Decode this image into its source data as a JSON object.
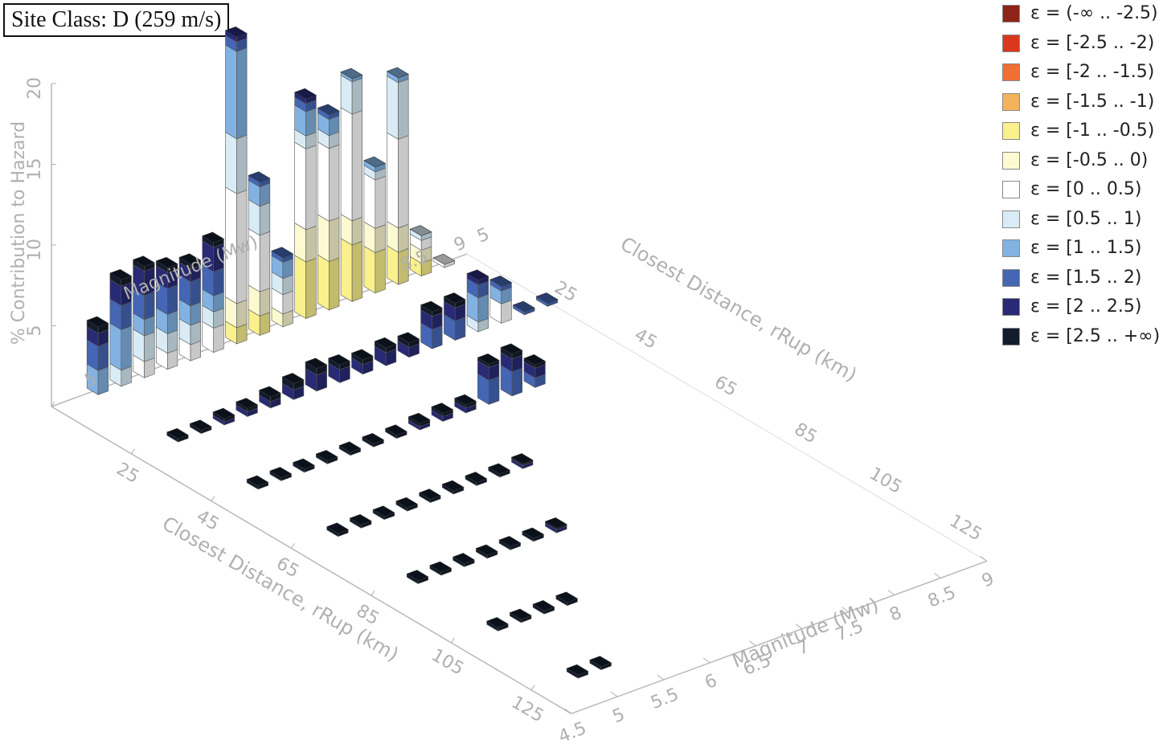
{
  "site_class": "Site Class: D (259 m/s)",
  "chart_data": {
    "type": "bar3d",
    "title": "",
    "zlabel": "% Contribution to Hazard",
    "xlabel": "Closest Distance, rRup (km)",
    "ylabel": "Magnitude (Mw)",
    "xlabel_back": "Closest Distance, rRup (km)",
    "ylabel_back": "Magnitude (Mw)",
    "z_ticks": [
      "5",
      "10",
      "15",
      "20"
    ],
    "x_ticks": [
      "5",
      "25",
      "45",
      "65",
      "85",
      "105",
      "125"
    ],
    "y_ticks": [
      "4.5",
      "5",
      "5.5",
      "6",
      "6.5",
      "7",
      "7.5",
      "8",
      "8.5",
      "9"
    ],
    "z_range": [
      0,
      20
    ],
    "x_range": [
      5,
      135
    ],
    "y_range": [
      4.5,
      9
    ],
    "epsilon_bins": [
      {
        "label": "ε = (-∞ .. -2.5)",
        "color": "#8e2418"
      },
      {
        "label": "ε = [-2.5 .. -2)",
        "color": "#d9381e"
      },
      {
        "label": "ε = [-2 .. -1.5)",
        "color": "#ee7033"
      },
      {
        "label": "ε = [-1.5 .. -1)",
        "color": "#f2b35a"
      },
      {
        "label": "ε = [-1 .. -0.5)",
        "color": "#faf08c"
      },
      {
        "label": "ε = [-0.5 .. 0)",
        "color": "#fdfad2"
      },
      {
        "label": "ε = [0 .. 0.5)",
        "color": "#ffffff"
      },
      {
        "label": "ε = [0.5 .. 1)",
        "color": "#d9ecf5"
      },
      {
        "label": "ε = [1 .. 1.5)",
        "color": "#82b2e2"
      },
      {
        "label": "ε = [1.5 .. 2)",
        "color": "#4466b4"
      },
      {
        "label": "ε = [2 .. 2.5)",
        "color": "#282a75"
      },
      {
        "label": "ε = [2.5 .. +∞)",
        "color": "#131c2c"
      }
    ],
    "bars": [
      {
        "r": 5,
        "m": 5.0,
        "stack": {
          "8": 1.5,
          "9": 1.5,
          "10": 0.8,
          "11": 0.4
        }
      },
      {
        "r": 5,
        "m": 5.25,
        "stack": {
          "7": 1.0,
          "8": 2.5,
          "9": 1.5,
          "10": 1.2,
          "11": 0.4
        }
      },
      {
        "r": 5,
        "m": 5.5,
        "stack": {
          "6": 1.0,
          "7": 1.6,
          "8": 1.0,
          "9": 1.5,
          "10": 1.5,
          "11": 0.3
        }
      },
      {
        "r": 5,
        "m": 5.75,
        "stack": {
          "6": 1.0,
          "7": 1.2,
          "8": 1.2,
          "9": 1.6,
          "10": 1.0,
          "11": 0.3
        }
      },
      {
        "r": 5,
        "m": 6.0,
        "stack": {
          "6": 1.0,
          "7": 1.2,
          "8": 1.2,
          "9": 1.5,
          "10": 0.8,
          "11": 0.3
        }
      },
      {
        "r": 5,
        "m": 6.25,
        "stack": {
          "6": 1.5,
          "7": 1.0,
          "8": 1.0,
          "9": 1.5,
          "10": 1.5,
          "11": 0.3
        }
      },
      {
        "r": 5,
        "m": 6.5,
        "stack": {
          "4": 1.0,
          "5": 1.5,
          "6": 6.8,
          "7": 3.4,
          "8": 5.4,
          "9": 0.6,
          "10": 0.3
        }
      },
      {
        "r": 5,
        "m": 6.75,
        "stack": {
          "4": 1.2,
          "5": 1.5,
          "6": 3.5,
          "7": 1.8,
          "8": 1.2,
          "9": 0.3
        }
      },
      {
        "r": 5,
        "m": 7.0,
        "stack": {
          "5": 0.8,
          "6": 1.2,
          "7": 1.0,
          "8": 1.0,
          "9": 0.3
        }
      },
      {
        "r": 5,
        "m": 7.25,
        "stack": {
          "4": 3.5,
          "5": 2.0,
          "6": 5.0,
          "7": 0.8,
          "8": 1.5,
          "9": 0.5,
          "10": 0.3
        }
      },
      {
        "r": 5,
        "m": 7.5,
        "stack": {
          "4": 3.0,
          "5": 2.5,
          "6": 4.5,
          "7": 0.8,
          "8": 1.0,
          "9": 0.3
        }
      },
      {
        "r": 5,
        "m": 7.75,
        "stack": {
          "4": 3.5,
          "5": 1.5,
          "6": 6.6,
          "7": 2.0,
          "8": 0.2
        }
      },
      {
        "r": 5,
        "m": 8.0,
        "stack": {
          "4": 2.5,
          "5": 1.5,
          "6": 3.0,
          "7": 0.5,
          "8": 0.3
        }
      },
      {
        "r": 5,
        "m": 8.25,
        "stack": {
          "4": 2.0,
          "5": 1.5,
          "6": 5.5,
          "7": 3.5,
          "8": 0.3
        }
      },
      {
        "r": 5,
        "m": 8.5,
        "stack": {
          "4": 0.8,
          "5": 0.8,
          "6": 0.6,
          "7": 0.3
        }
      },
      {
        "r": 5,
        "m": 8.75,
        "stack": {
          "6": 0.2
        }
      },
      {
        "r": 25,
        "m": 5.0,
        "stack": {
          "11": 0.2
        }
      },
      {
        "r": 25,
        "m": 5.25,
        "stack": {
          "11": 0.2
        }
      },
      {
        "r": 25,
        "m": 5.5,
        "stack": {
          "10": 0.2,
          "11": 0.2
        }
      },
      {
        "r": 25,
        "m": 5.75,
        "stack": {
          "10": 0.3,
          "11": 0.2
        }
      },
      {
        "r": 25,
        "m": 6.0,
        "stack": {
          "10": 0.4,
          "11": 0.3
        }
      },
      {
        "r": 25,
        "m": 6.25,
        "stack": {
          "10": 0.6,
          "11": 0.4
        }
      },
      {
        "r": 25,
        "m": 6.5,
        "stack": {
          "10": 1.0,
          "11": 0.4
        }
      },
      {
        "r": 25,
        "m": 6.75,
        "stack": {
          "10": 0.8,
          "11": 0.3
        }
      },
      {
        "r": 25,
        "m": 7.0,
        "stack": {
          "10": 0.6,
          "11": 0.3
        }
      },
      {
        "r": 25,
        "m": 7.25,
        "stack": {
          "10": 0.8,
          "11": 0.3
        }
      },
      {
        "r": 25,
        "m": 7.5,
        "stack": {
          "10": 0.6,
          "11": 0.3
        }
      },
      {
        "r": 25,
        "m": 7.75,
        "stack": {
          "9": 1.2,
          "10": 0.8,
          "11": 0.3
        }
      },
      {
        "r": 25,
        "m": 8.0,
        "stack": {
          "9": 1.2,
          "10": 0.8,
          "11": 0.3
        }
      },
      {
        "r": 25,
        "m": 8.25,
        "stack": {
          "7": 0.6,
          "8": 1.5,
          "9": 0.8,
          "10": 0.3
        }
      },
      {
        "r": 25,
        "m": 8.5,
        "stack": {
          "6": 1.2,
          "8": 0.8,
          "9": 0.3
        }
      },
      {
        "r": 25,
        "m": 8.75,
        "stack": {
          "9": 0.2
        }
      },
      {
        "r": 25,
        "m": 9.0,
        "stack": {
          "9": 0.2
        }
      },
      {
        "r": 45,
        "m": 5.0,
        "stack": {
          "11": 0.2
        }
      },
      {
        "r": 45,
        "m": 5.25,
        "stack": {
          "11": 0.2
        }
      },
      {
        "r": 45,
        "m": 5.5,
        "stack": {
          "11": 0.2
        }
      },
      {
        "r": 45,
        "m": 5.75,
        "stack": {
          "11": 0.2
        }
      },
      {
        "r": 45,
        "m": 6.0,
        "stack": {
          "11": 0.2
        }
      },
      {
        "r": 45,
        "m": 6.25,
        "stack": {
          "11": 0.2
        }
      },
      {
        "r": 45,
        "m": 6.5,
        "stack": {
          "11": 0.2
        }
      },
      {
        "r": 45,
        "m": 6.75,
        "stack": {
          "10": 0.2,
          "11": 0.2
        }
      },
      {
        "r": 45,
        "m": 7.0,
        "stack": {
          "10": 0.3,
          "11": 0.2
        }
      },
      {
        "r": 45,
        "m": 7.25,
        "stack": {
          "10": 0.3,
          "11": 0.2
        }
      },
      {
        "r": 45,
        "m": 7.5,
        "stack": {
          "9": 1.5,
          "10": 0.8,
          "11": 0.2
        }
      },
      {
        "r": 45,
        "m": 7.75,
        "stack": {
          "9": 1.5,
          "10": 0.8,
          "11": 0.3
        }
      },
      {
        "r": 45,
        "m": 8.0,
        "stack": {
          "9": 0.6,
          "10": 0.6,
          "11": 0.2
        }
      },
      {
        "r": 65,
        "m": 5.0,
        "stack": {
          "11": 0.2
        }
      },
      {
        "r": 65,
        "m": 5.25,
        "stack": {
          "11": 0.2
        }
      },
      {
        "r": 65,
        "m": 5.5,
        "stack": {
          "11": 0.2
        }
      },
      {
        "r": 65,
        "m": 5.75,
        "stack": {
          "11": 0.2
        }
      },
      {
        "r": 65,
        "m": 6.0,
        "stack": {
          "11": 0.2
        }
      },
      {
        "r": 65,
        "m": 6.25,
        "stack": {
          "11": 0.2
        }
      },
      {
        "r": 65,
        "m": 6.5,
        "stack": {
          "11": 0.2
        }
      },
      {
        "r": 65,
        "m": 6.75,
        "stack": {
          "11": 0.2
        }
      },
      {
        "r": 65,
        "m": 7.0,
        "stack": {
          "10": 0.2,
          "11": 0.1
        }
      },
      {
        "r": 85,
        "m": 5.0,
        "stack": {
          "11": 0.2
        }
      },
      {
        "r": 85,
        "m": 5.25,
        "stack": {
          "11": 0.2
        }
      },
      {
        "r": 85,
        "m": 5.5,
        "stack": {
          "11": 0.2
        }
      },
      {
        "r": 85,
        "m": 5.75,
        "stack": {
          "11": 0.2
        }
      },
      {
        "r": 85,
        "m": 6.0,
        "stack": {
          "11": 0.2
        }
      },
      {
        "r": 85,
        "m": 6.25,
        "stack": {
          "11": 0.2
        }
      },
      {
        "r": 85,
        "m": 6.5,
        "stack": {
          "10": 0.2,
          "11": 0.1
        }
      },
      {
        "r": 105,
        "m": 5.0,
        "stack": {
          "11": 0.2
        }
      },
      {
        "r": 105,
        "m": 5.25,
        "stack": {
          "11": 0.2
        }
      },
      {
        "r": 105,
        "m": 5.5,
        "stack": {
          "11": 0.2
        }
      },
      {
        "r": 105,
        "m": 5.75,
        "stack": {
          "11": 0.2
        }
      },
      {
        "r": 125,
        "m": 5.0,
        "stack": {
          "11": 0.2
        }
      },
      {
        "r": 125,
        "m": 5.25,
        "stack": {
          "11": 0.2
        }
      }
    ]
  }
}
